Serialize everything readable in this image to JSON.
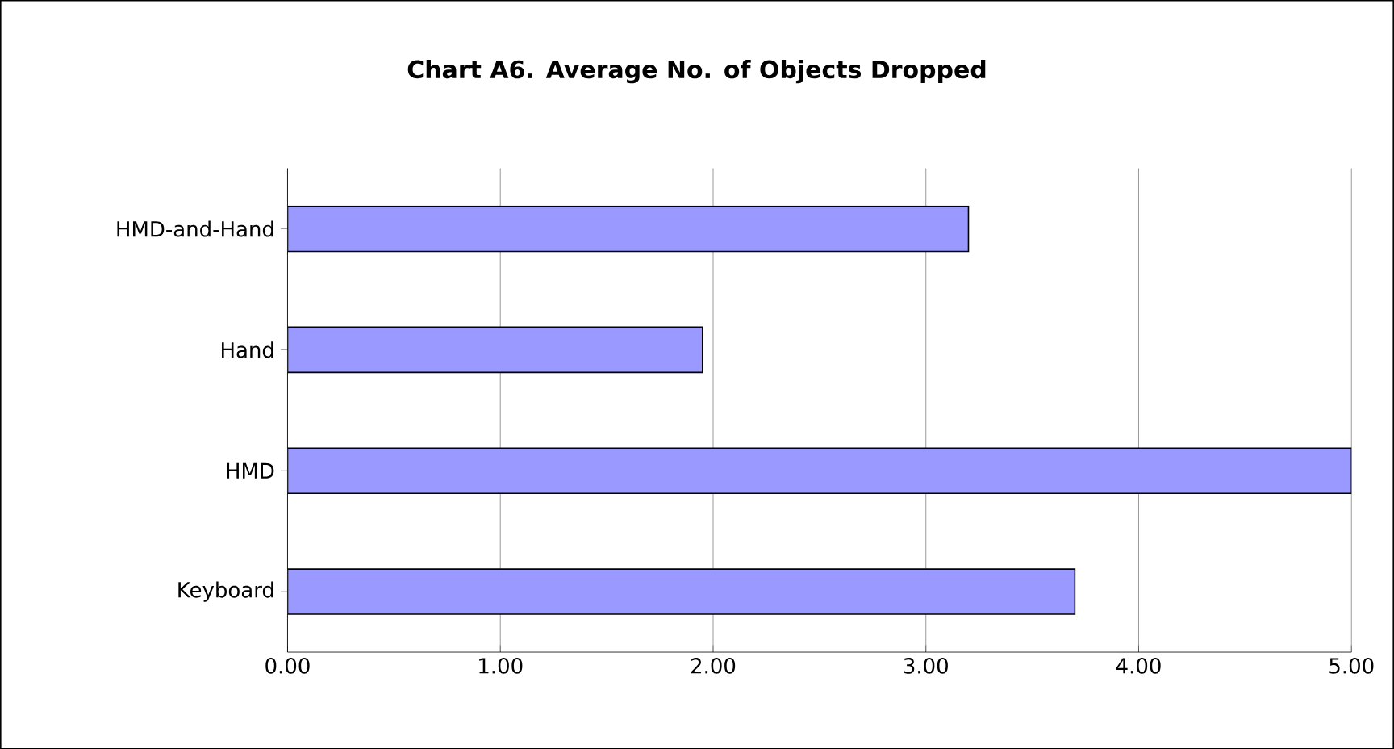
{
  "chart_data": {
    "type": "bar",
    "orientation": "horizontal",
    "title": "Chart A6. Average No. of Objects Dropped",
    "categories": [
      "HMD-and-Hand",
      "Hand",
      "HMD",
      "Keyboard"
    ],
    "values": [
      3.2,
      1.95,
      5.0,
      3.7
    ],
    "color": "#9999ff",
    "xlim": [
      0,
      5
    ],
    "xticks": [
      {
        "value": 0,
        "label": "0.00"
      },
      {
        "value": 1,
        "label": "1.00"
      },
      {
        "value": 2,
        "label": "2.00"
      },
      {
        "value": 3,
        "label": "3.00"
      },
      {
        "value": 4,
        "label": "4.00"
      },
      {
        "value": 5,
        "label": "5.00"
      }
    ],
    "grid": "x"
  }
}
